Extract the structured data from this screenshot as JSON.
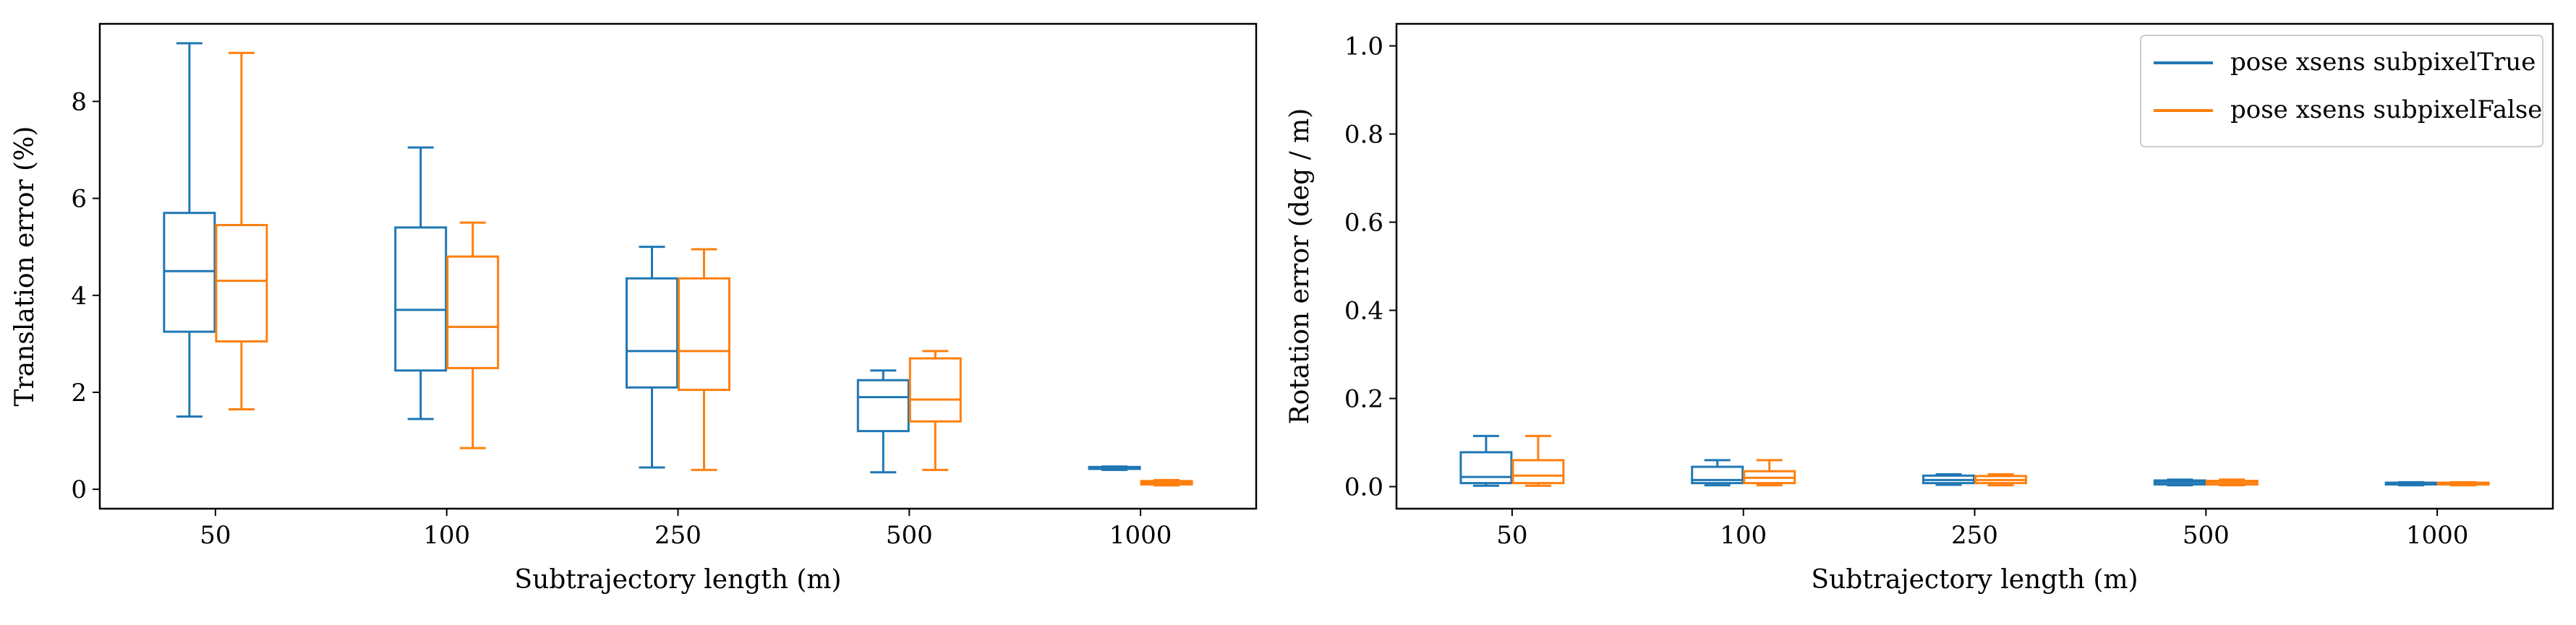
{
  "colors": {
    "series_1": "#1f77b4",
    "series_2": "#ff7f0e",
    "axes": "#000000",
    "legend_border": "#cccccc",
    "background": "#ffffff"
  },
  "chart_data": [
    {
      "type": "box",
      "title": "",
      "xlabel": "Subtrajectory length (m)",
      "ylabel": "Translation error (%)",
      "categories": [
        "50",
        "100",
        "250",
        "500",
        "1000"
      ],
      "ylim": [
        -0.4,
        9.6
      ],
      "yticks": [
        "0",
        "2",
        "4",
        "6",
        "8"
      ],
      "legend": null,
      "series": [
        {
          "name": "pose xsens subpixelTrue",
          "color": "#1f77b4",
          "boxes": [
            {
              "whisker_low": 1.5,
              "q1": 3.25,
              "median": 4.5,
              "q3": 5.7,
              "whisker_high": 9.2
            },
            {
              "whisker_low": 1.45,
              "q1": 2.45,
              "median": 3.7,
              "q3": 5.4,
              "whisker_high": 7.05
            },
            {
              "whisker_low": 0.45,
              "q1": 2.1,
              "median": 2.85,
              "q3": 4.35,
              "whisker_high": 5.0
            },
            {
              "whisker_low": 0.35,
              "q1": 1.2,
              "median": 1.9,
              "q3": 2.25,
              "whisker_high": 2.45
            },
            {
              "whisker_low": 0.4,
              "q1": 0.42,
              "median": 0.44,
              "q3": 0.46,
              "whisker_high": 0.47
            }
          ]
        },
        {
          "name": "pose xsens subpixelFalse",
          "color": "#ff7f0e",
          "boxes": [
            {
              "whisker_low": 1.65,
              "q1": 3.05,
              "median": 4.3,
              "q3": 5.45,
              "whisker_high": 9.0
            },
            {
              "whisker_low": 0.85,
              "q1": 2.5,
              "median": 3.35,
              "q3": 4.8,
              "whisker_high": 5.5
            },
            {
              "whisker_low": 0.4,
              "q1": 2.05,
              "median": 2.85,
              "q3": 4.35,
              "whisker_high": 4.95
            },
            {
              "whisker_low": 0.4,
              "q1": 1.4,
              "median": 1.85,
              "q3": 2.7,
              "whisker_high": 2.85
            },
            {
              "whisker_low": 0.08,
              "q1": 0.1,
              "median": 0.14,
              "q3": 0.17,
              "whisker_high": 0.19
            }
          ]
        }
      ]
    },
    {
      "type": "box",
      "title": "",
      "xlabel": "Subtrajectory length (m)",
      "ylabel": "Rotation error (deg / m)",
      "categories": [
        "50",
        "100",
        "250",
        "500",
        "1000"
      ],
      "ylim": [
        -0.05,
        1.05
      ],
      "yticks": [
        "0.0",
        "0.2",
        "0.4",
        "0.6",
        "0.8",
        "1.0"
      ],
      "legend": {
        "placement": "top-right",
        "entries": [
          "pose xsens subpixelTrue",
          "pose xsens subpixelFalse"
        ]
      },
      "series": [
        {
          "name": "pose xsens subpixelTrue",
          "color": "#1f77b4",
          "boxes": [
            {
              "whisker_low": 0.002,
              "q1": 0.008,
              "median": 0.022,
              "q3": 0.078,
              "whisker_high": 0.115
            },
            {
              "whisker_low": 0.003,
              "q1": 0.008,
              "median": 0.015,
              "q3": 0.045,
              "whisker_high": 0.06
            },
            {
              "whisker_low": 0.004,
              "q1": 0.008,
              "median": 0.015,
              "q3": 0.025,
              "whisker_high": 0.028
            },
            {
              "whisker_low": 0.003,
              "q1": 0.005,
              "median": 0.01,
              "q3": 0.014,
              "whisker_high": 0.016
            },
            {
              "whisker_low": 0.003,
              "q1": 0.005,
              "median": 0.007,
              "q3": 0.009,
              "whisker_high": 0.01
            }
          ]
        },
        {
          "name": "pose xsens subpixelFalse",
          "color": "#ff7f0e",
          "boxes": [
            {
              "whisker_low": 0.002,
              "q1": 0.008,
              "median": 0.025,
              "q3": 0.06,
              "whisker_high": 0.115
            },
            {
              "whisker_low": 0.003,
              "q1": 0.008,
              "median": 0.02,
              "q3": 0.035,
              "whisker_high": 0.06
            },
            {
              "whisker_low": 0.003,
              "q1": 0.008,
              "median": 0.015,
              "q3": 0.024,
              "whisker_high": 0.028
            },
            {
              "whisker_low": 0.003,
              "q1": 0.005,
              "median": 0.01,
              "q3": 0.013,
              "whisker_high": 0.016
            },
            {
              "whisker_low": 0.003,
              "q1": 0.005,
              "median": 0.007,
              "q3": 0.009,
              "whisker_high": 0.01
            }
          ]
        }
      ]
    }
  ]
}
